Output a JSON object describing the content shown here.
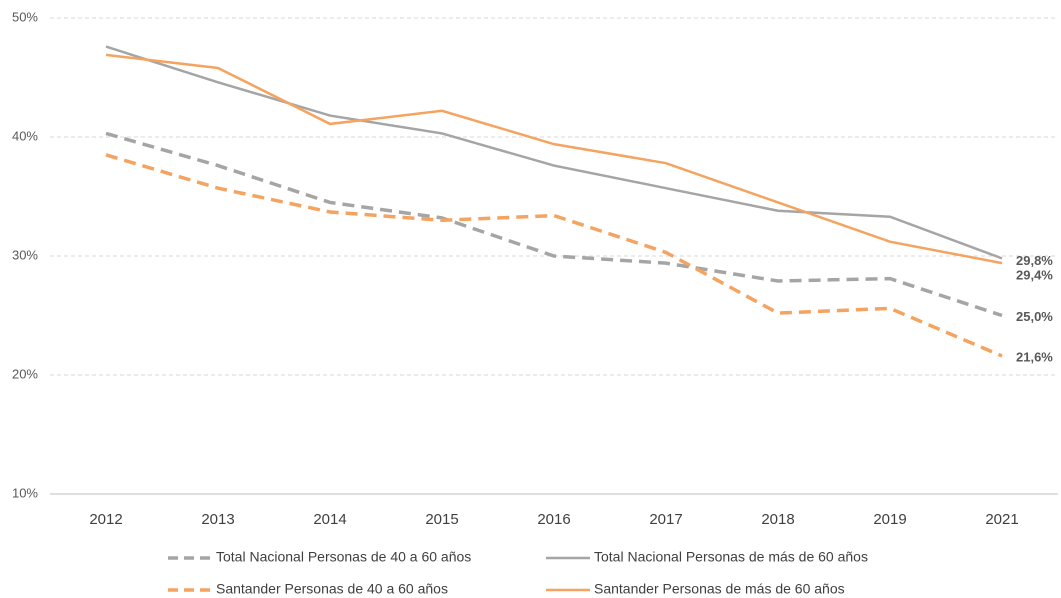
{
  "chart_data": {
    "type": "line",
    "categories": [
      "2012",
      "2013",
      "2014",
      "2015",
      "2016",
      "2017",
      "2018",
      "2019",
      "2021"
    ],
    "ylim": [
      10,
      50
    ],
    "yticks": [
      {
        "value": 10,
        "label": "10%"
      },
      {
        "value": 20,
        "label": "20%"
      },
      {
        "value": 30,
        "label": "30%"
      },
      {
        "value": 40,
        "label": "40%"
      },
      {
        "value": 50,
        "label": "50%"
      }
    ],
    "grid": true,
    "legend": "bottom",
    "series": [
      {
        "name": "Total Nacional Personas de 40 a 60 años",
        "color": "#a5a5a5",
        "dashed": true,
        "values": [
          40.3,
          37.6,
          34.5,
          33.2,
          30.0,
          29.4,
          27.9,
          28.1,
          25.0
        ],
        "value_labels": [
          null,
          null,
          null,
          null,
          null,
          null,
          null,
          null,
          "25,0%"
        ]
      },
      {
        "name": "Total Nacional Personas de más de 60 años",
        "color": "#a5a5a5",
        "dashed": false,
        "values": [
          47.6,
          44.6,
          41.8,
          40.3,
          37.6,
          35.7,
          33.8,
          33.3,
          29.8
        ],
        "value_labels": [
          null,
          null,
          null,
          null,
          null,
          null,
          null,
          null,
          "29,8%"
        ]
      },
      {
        "name": "Santander Personas de 40 a 60 años",
        "color": "#f4a460",
        "dashed": true,
        "values": [
          38.5,
          35.7,
          33.7,
          33.0,
          33.4,
          30.3,
          25.2,
          25.6,
          21.6
        ],
        "value_labels": [
          null,
          null,
          null,
          null,
          null,
          null,
          null,
          null,
          "21,6%"
        ]
      },
      {
        "name": "Santander Personas de más de 60 años",
        "color": "#f4a460",
        "dashed": false,
        "values": [
          46.9,
          45.8,
          41.1,
          42.2,
          39.4,
          37.8,
          34.5,
          31.2,
          29.4
        ],
        "value_labels": [
          null,
          null,
          null,
          null,
          null,
          null,
          null,
          null,
          "29,4%"
        ]
      }
    ]
  }
}
